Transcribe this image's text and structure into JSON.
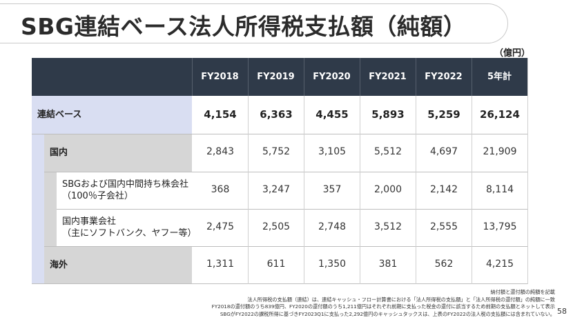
{
  "title": "SBG連結ベース法人所得税支払額（純額）",
  "unit": "（億円）",
  "columns": [
    "FY2018",
    "FY2019",
    "FY2020",
    "FY2021",
    "FY2022",
    "5年計"
  ],
  "rows": [
    {
      "label_lines": [
        "連結ベース"
      ],
      "values": [
        "4,154",
        "6,363",
        "4,455",
        "5,893",
        "5,259",
        "26,124"
      ]
    },
    {
      "label_lines": [
        "国内"
      ],
      "values": [
        "2,843",
        "5,752",
        "3,105",
        "5,512",
        "4,697",
        "21,909"
      ]
    },
    {
      "label_lines": [
        "SBGおよび国内中間持ち株会社",
        "（100％子会社）"
      ],
      "values": [
        "368",
        "3,247",
        "357",
        "2,000",
        "2,142",
        "8,114"
      ]
    },
    {
      "label_lines": [
        "国内事業会社",
        "（主にソフトバンク、ヤフー等）"
      ],
      "values": [
        "2,475",
        "2,505",
        "2,748",
        "3,512",
        "2,555",
        "13,795"
      ]
    },
    {
      "label_lines": [
        "海外"
      ],
      "values": [
        "1,311",
        "611",
        "1,350",
        "381",
        "562",
        "4,215"
      ]
    }
  ],
  "footnotes": [
    "納付額と還付額の純額を記載",
    "法人所得税の支払額（連結）は、連結キャッシュ・フロー計算書における「法人所得税の支払額」と「法人所得税の還付額」の純額に一致",
    "FY2018の還付額のうち839億円、FY2020の還付額のうち1,211億円はそれぞれ前期に支払った税金の還付に該当するため前期の支払額とネットして表示",
    "SBGがFY2022の課税所得に基づきFY2023Q1に支払った2,292億円のキャッシュタックスは、上表のFY2022の法人税の支払額には含まれていない。"
  ],
  "page_number": "58"
}
